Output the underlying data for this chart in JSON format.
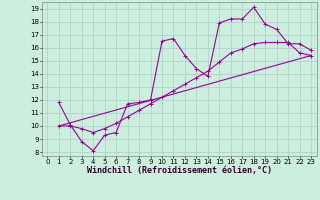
{
  "xlabel": "Windchill (Refroidissement éolien,°C)",
  "bg_color": "#cceedd",
  "grid_color": "#aacccc",
  "line_color": "#990099",
  "xlim": [
    -0.5,
    23.5
  ],
  "ylim": [
    7.7,
    19.5
  ],
  "xticks": [
    0,
    1,
    2,
    3,
    4,
    5,
    6,
    7,
    8,
    9,
    10,
    11,
    12,
    13,
    14,
    15,
    16,
    17,
    18,
    19,
    20,
    21,
    22,
    23
  ],
  "yticks": [
    8,
    9,
    10,
    11,
    12,
    13,
    14,
    15,
    16,
    17,
    18,
    19
  ],
  "series1_x": [
    1,
    2,
    3,
    4,
    5,
    6,
    7,
    8,
    9,
    10,
    11,
    12,
    13,
    14,
    15,
    16,
    17,
    18,
    19,
    20,
    21,
    22,
    23
  ],
  "series1_y": [
    11.8,
    10.1,
    8.8,
    8.1,
    9.3,
    9.5,
    11.7,
    11.8,
    12.0,
    16.5,
    16.7,
    15.4,
    14.4,
    13.8,
    17.9,
    18.2,
    18.2,
    19.1,
    17.8,
    17.4,
    16.3,
    16.3,
    15.8
  ],
  "series2_x": [
    1,
    2,
    3,
    4,
    5,
    6,
    7,
    8,
    9,
    10,
    11,
    12,
    13,
    14,
    15,
    16,
    17,
    18,
    19,
    20,
    21,
    22,
    23
  ],
  "series2_y": [
    10.0,
    10.0,
    9.8,
    9.5,
    9.8,
    10.2,
    10.7,
    11.2,
    11.7,
    12.2,
    12.7,
    13.2,
    13.7,
    14.2,
    14.9,
    15.6,
    15.9,
    16.3,
    16.4,
    16.4,
    16.4,
    15.6,
    15.4
  ],
  "series3_x": [
    1,
    23
  ],
  "series3_y": [
    10.0,
    15.4
  ],
  "marker_size": 2.5,
  "linewidth": 0.8,
  "tick_fontsize": 5,
  "xlabel_fontsize": 6
}
